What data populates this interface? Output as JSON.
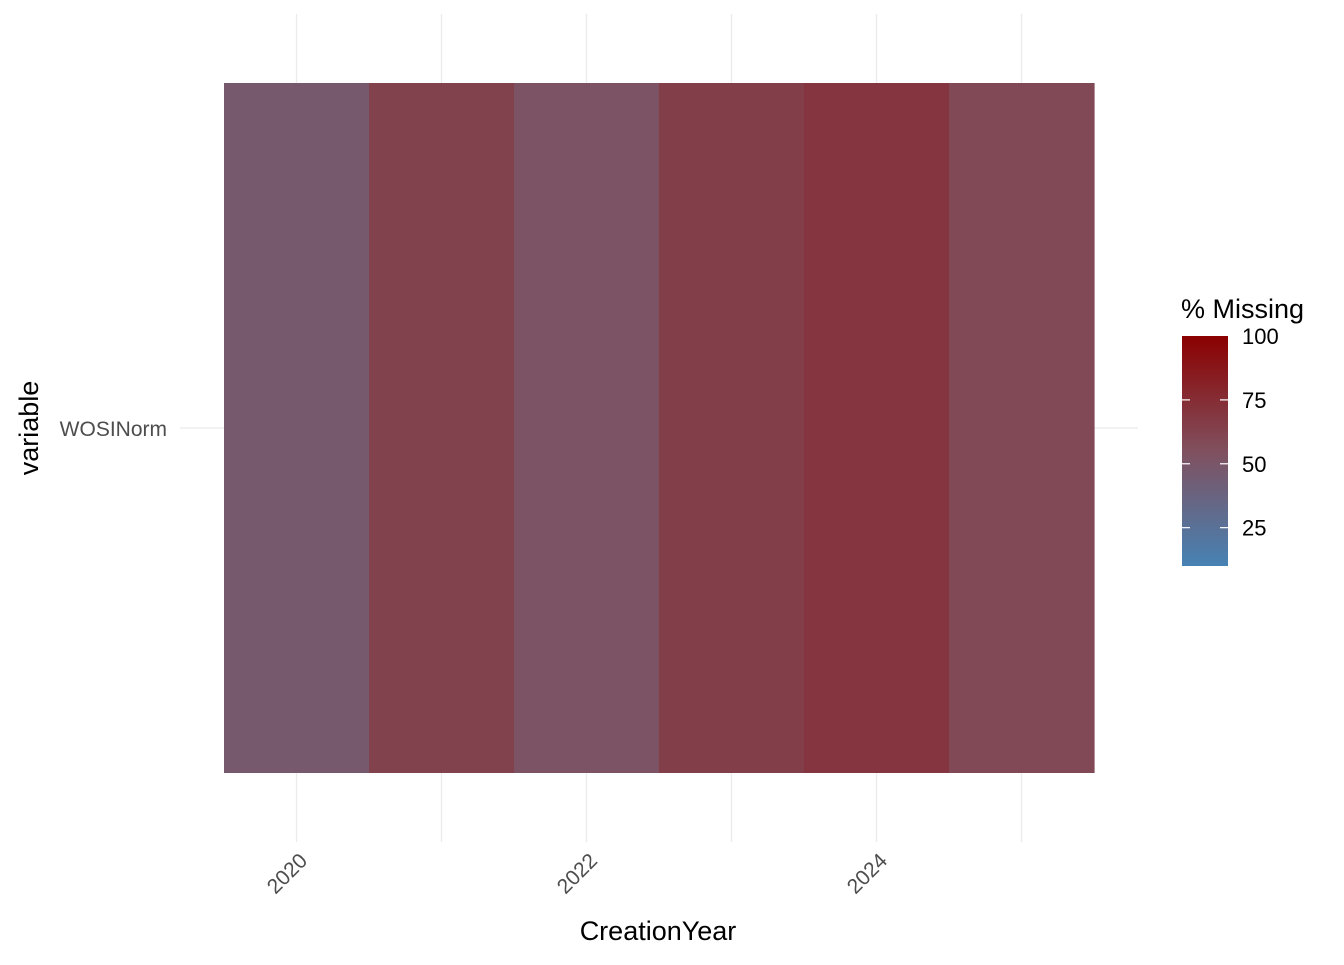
{
  "chart_data": {
    "type": "heatmap",
    "title": "",
    "xlabel": "CreationYear",
    "ylabel": "variable",
    "x": [
      2020,
      2021,
      2022,
      2023,
      2024,
      2025
    ],
    "x_tick_labels": [
      "2020",
      "2022",
      "2024"
    ],
    "y_categories": [
      "WOSINorm"
    ],
    "values": [
      [
        47,
        63,
        52,
        65,
        70,
        59
      ]
    ],
    "grid": true,
    "legend": {
      "title": "% Missing",
      "position": "right",
      "ticks": [
        25,
        50,
        75,
        100
      ],
      "range": [
        10,
        100
      ],
      "colors": {
        "low": "#4682b4",
        "mid": "#80505e",
        "high": "#8b0000"
      }
    }
  }
}
